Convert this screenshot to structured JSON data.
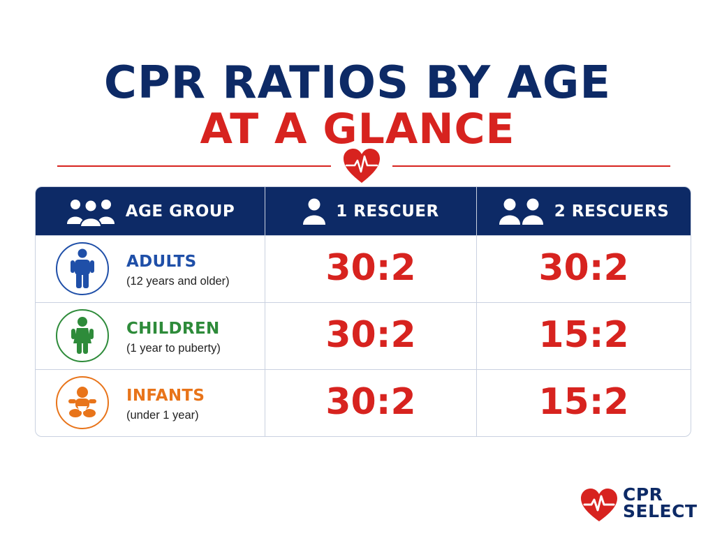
{
  "title": {
    "line1": "CPR RATIOS BY AGE",
    "line2": "AT A GLANCE"
  },
  "header": {
    "age_group": "AGE GROUP",
    "one_rescuer": "1 RESCUER",
    "two_rescuers": "2 RESCUERS"
  },
  "rows": [
    {
      "name": "ADULTS",
      "sub": "(12 years and older)",
      "one": "30:2",
      "two": "30:2",
      "color": "#1f4fa8",
      "icon": "adult-icon"
    },
    {
      "name": "CHILDREN",
      "sub": "(1 year to puberty)",
      "one": "30:2",
      "two": "15:2",
      "color": "#2e8b3a",
      "icon": "child-icon"
    },
    {
      "name": "INFANTS",
      "sub": "(under 1 year)",
      "one": "30:2",
      "two": "15:2",
      "color": "#e8741a",
      "icon": "infant-icon"
    }
  ],
  "logo": {
    "line1": "CPR",
    "line2": "SELECT"
  },
  "colors": {
    "navy": "#0d2a66",
    "red": "#d7231f"
  }
}
